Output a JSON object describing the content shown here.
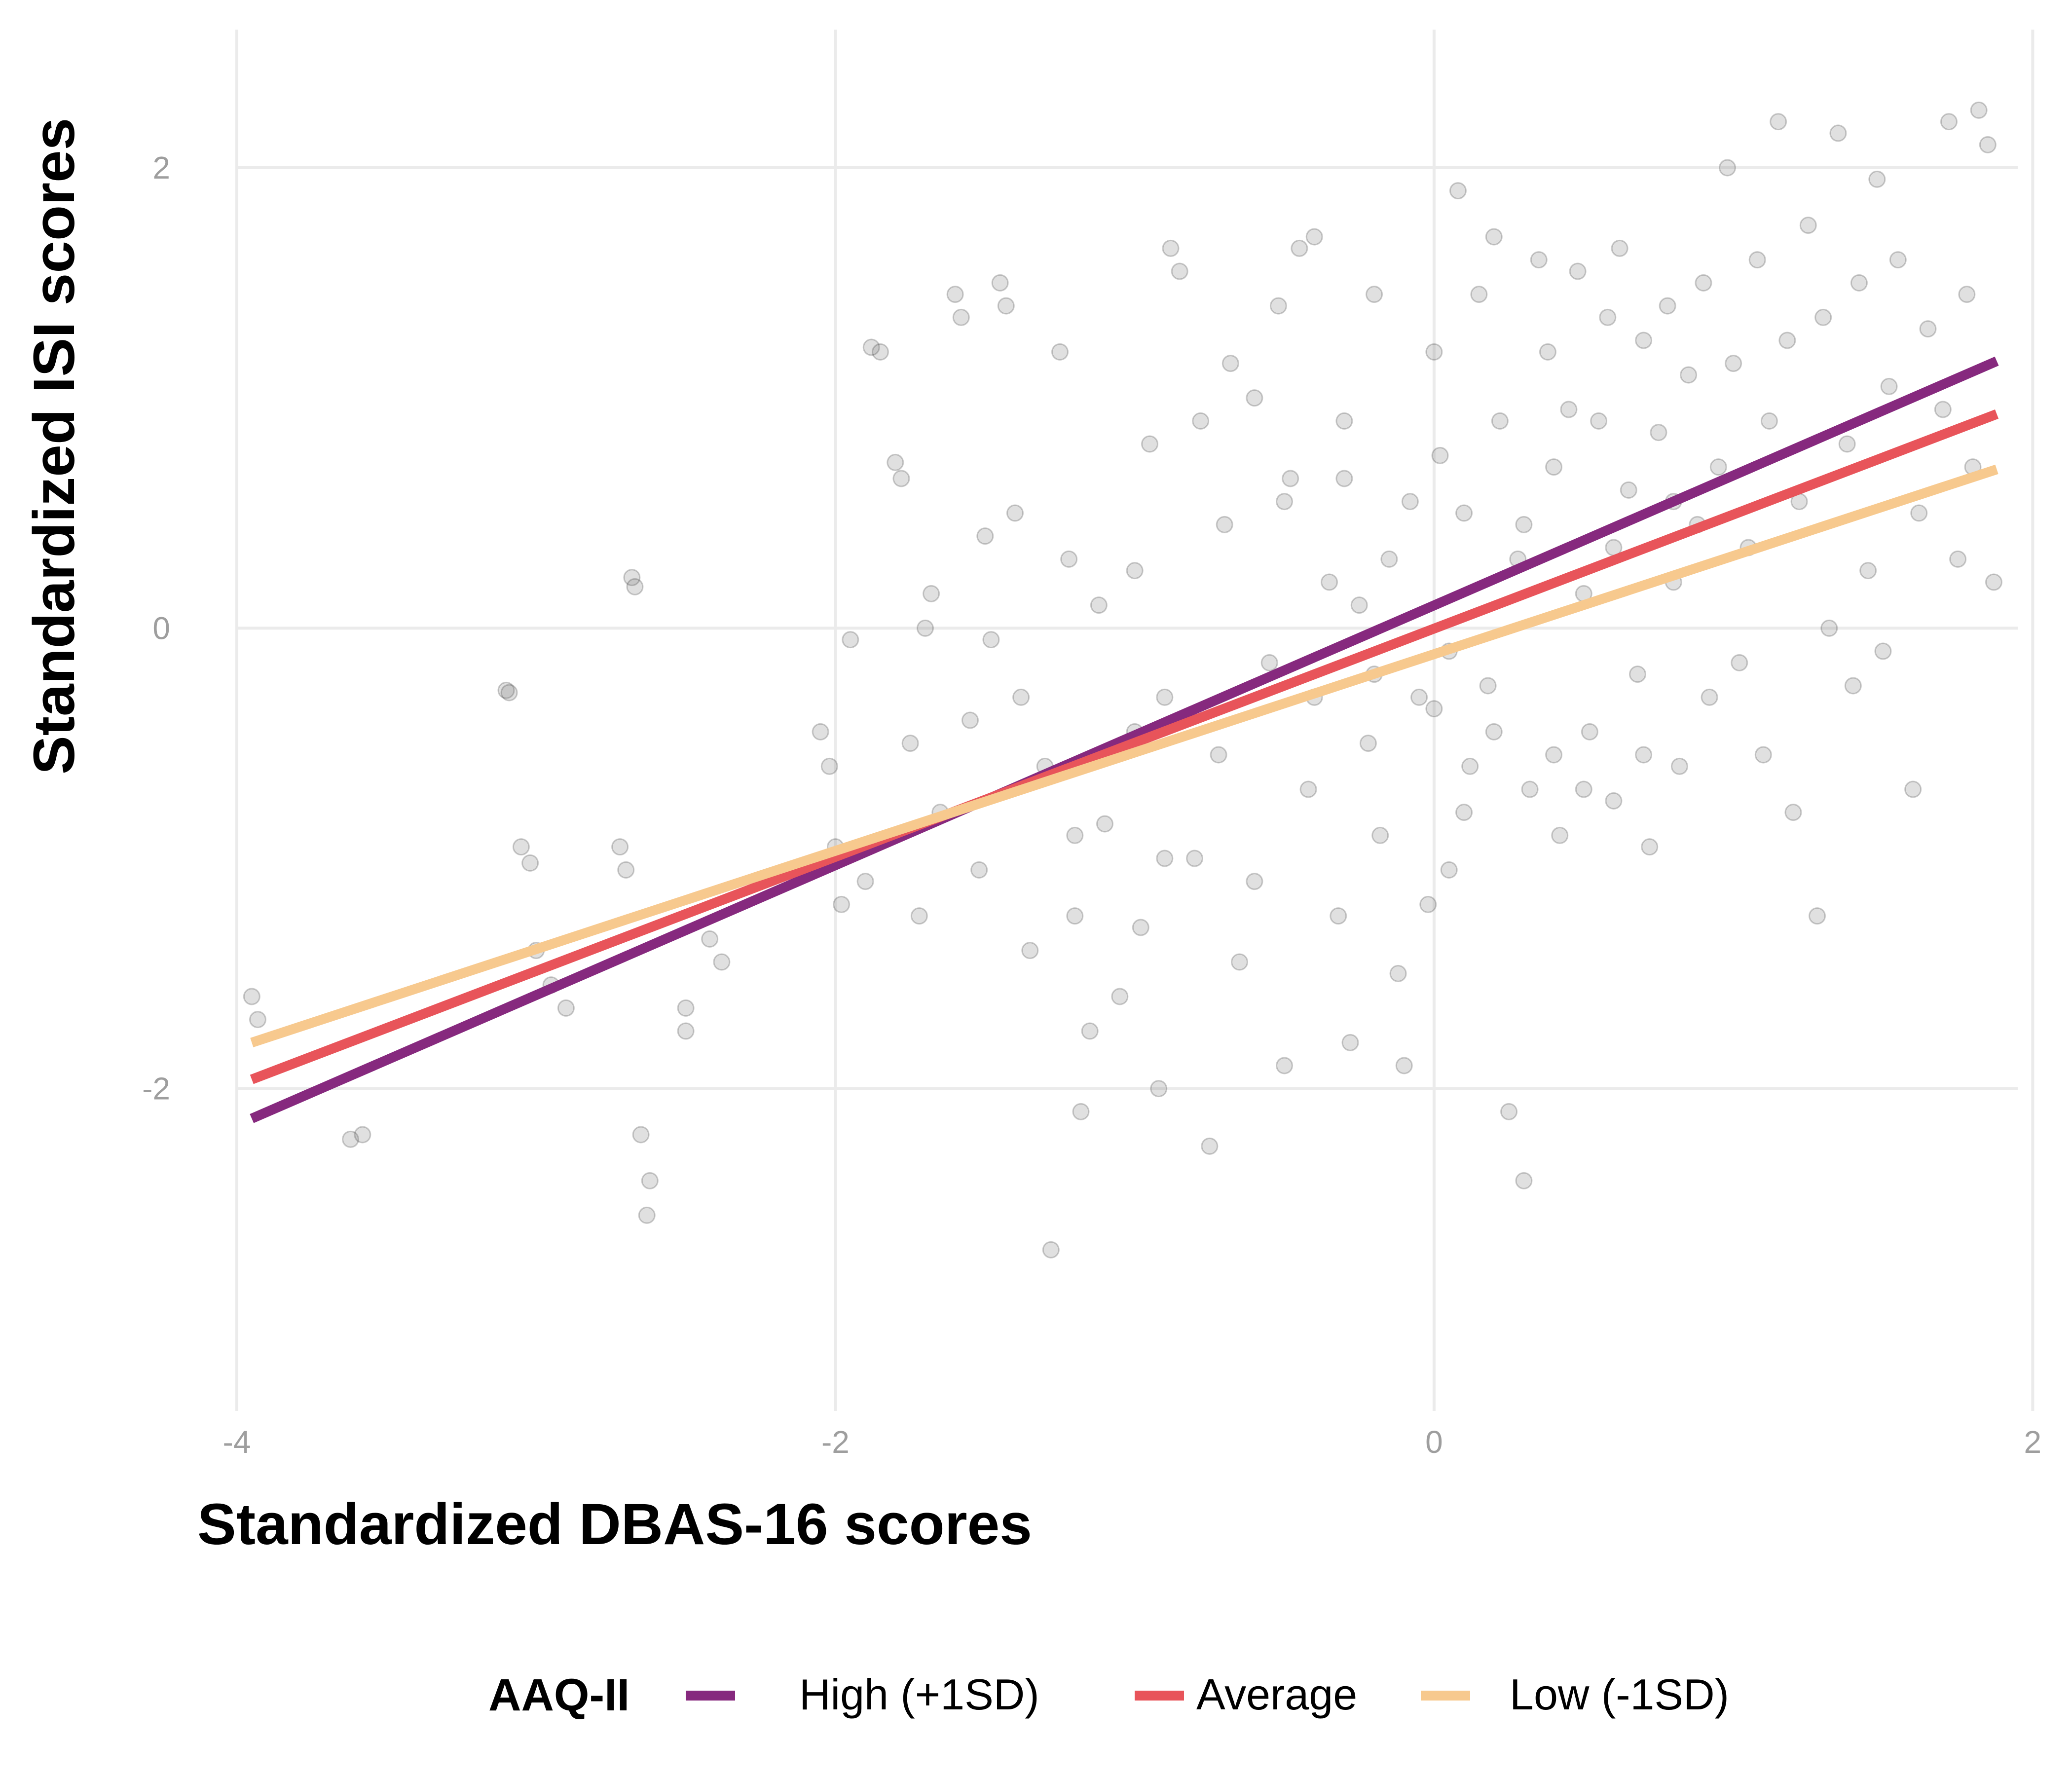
{
  "chart_data": {
    "type": "scatter",
    "title": "",
    "xlabel": "Standardized DBAS-16 scores",
    "ylabel": "Standardized ISI scores",
    "xlim": [
      -4.0,
      1.95
    ],
    "ylim": [
      -3.4,
      2.6
    ],
    "x_ticks": [
      -4,
      -2,
      0,
      2
    ],
    "y_ticks": [
      -2,
      0,
      2
    ],
    "x_tick_labels": [
      "-4",
      "-2",
      "0",
      "2"
    ],
    "y_tick_labels": [
      "-2",
      "0",
      "2"
    ],
    "grid": true,
    "legend": {
      "title": "AAQ-II",
      "position": "bottom",
      "entries": [
        "High (+1SD)",
        "Average",
        "Low (-1SD)"
      ]
    },
    "points": {
      "color": "#666666",
      "opacity": 0.2,
      "sample": [
        [
          -3.95,
          -1.6
        ],
        [
          -3.93,
          -1.7
        ],
        [
          -3.62,
          -2.22
        ],
        [
          -3.58,
          -2.2
        ],
        [
          -3.1,
          -0.27
        ],
        [
          -3.09,
          -0.28
        ],
        [
          -3.05,
          -0.95
        ],
        [
          -3.02,
          -1.02
        ],
        [
          -3.0,
          -1.4
        ],
        [
          -2.95,
          -1.55
        ],
        [
          -2.9,
          -1.65
        ],
        [
          -2.72,
          -0.95
        ],
        [
          -2.7,
          -1.05
        ],
        [
          -2.68,
          0.22
        ],
        [
          -2.67,
          0.18
        ],
        [
          -2.65,
          -2.2
        ],
        [
          -2.62,
          -2.4
        ],
        [
          -2.63,
          -2.55
        ],
        [
          -2.5,
          -1.65
        ],
        [
          -2.5,
          -1.75
        ],
        [
          -2.42,
          -1.35
        ],
        [
          -2.38,
          -1.45
        ],
        [
          -2.05,
          -0.45
        ],
        [
          -2.02,
          -0.6
        ],
        [
          -2.0,
          -0.95
        ],
        [
          -1.98,
          -1.2
        ],
        [
          -1.95,
          -0.05
        ],
        [
          -1.9,
          -1.1
        ],
        [
          -1.88,
          1.22
        ],
        [
          -1.85,
          1.2
        ],
        [
          -1.8,
          0.72
        ],
        [
          -1.78,
          0.65
        ],
        [
          -1.75,
          -0.5
        ],
        [
          -1.72,
          -1.25
        ],
        [
          -1.7,
          0.0
        ],
        [
          -1.68,
          0.15
        ],
        [
          -1.65,
          -0.8
        ],
        [
          -1.6,
          1.45
        ],
        [
          -1.58,
          1.35
        ],
        [
          -1.55,
          -0.4
        ],
        [
          -1.52,
          -1.05
        ],
        [
          -1.5,
          0.4
        ],
        [
          -1.48,
          -0.05
        ],
        [
          -1.45,
          1.5
        ],
        [
          -1.43,
          1.4
        ],
        [
          -1.4,
          0.5
        ],
        [
          -1.38,
          -0.3
        ],
        [
          -1.35,
          -1.4
        ],
        [
          -1.3,
          -0.6
        ],
        [
          -1.28,
          -2.7
        ],
        [
          -1.25,
          1.2
        ],
        [
          -1.22,
          0.3
        ],
        [
          -1.2,
          -1.25
        ],
        [
          -1.18,
          -2.1
        ],
        [
          -1.15,
          -1.75
        ],
        [
          -1.12,
          0.1
        ],
        [
          -1.1,
          -0.85
        ],
        [
          -1.05,
          -1.6
        ],
        [
          -1.0,
          0.25
        ],
        [
          -0.98,
          -1.3
        ],
        [
          -0.95,
          0.8
        ],
        [
          -0.92,
          -2.0
        ],
        [
          -0.9,
          -0.3
        ],
        [
          -0.88,
          1.65
        ],
        [
          -0.85,
          1.55
        ],
        [
          -0.8,
          -1.0
        ],
        [
          -0.78,
          0.9
        ],
        [
          -0.75,
          -2.25
        ],
        [
          -0.72,
          -0.55
        ],
        [
          -0.7,
          0.45
        ],
        [
          -0.68,
          1.15
        ],
        [
          -0.65,
          -1.45
        ],
        [
          -0.6,
          1.0
        ],
        [
          -0.55,
          -0.15
        ],
        [
          -0.52,
          1.4
        ],
        [
          -0.5,
          -1.9
        ],
        [
          -0.48,
          0.65
        ],
        [
          -0.45,
          1.65
        ],
        [
          -0.42,
          -0.7
        ],
        [
          -0.4,
          1.7
        ],
        [
          -0.35,
          0.2
        ],
        [
          -0.32,
          -1.25
        ],
        [
          -0.3,
          0.9
        ],
        [
          -0.28,
          -1.8
        ],
        [
          -0.25,
          0.1
        ],
        [
          -0.22,
          -0.5
        ],
        [
          -0.2,
          1.45
        ],
        [
          -0.18,
          -0.9
        ],
        [
          -0.15,
          0.3
        ],
        [
          -0.12,
          -1.5
        ],
        [
          -0.1,
          -1.9
        ],
        [
          -0.08,
          0.55
        ],
        [
          -0.05,
          -0.3
        ],
        [
          -0.02,
          -1.2
        ],
        [
          0.0,
          1.2
        ],
        [
          0.02,
          0.75
        ],
        [
          0.05,
          -0.1
        ],
        [
          0.05,
          -1.05
        ],
        [
          0.08,
          1.9
        ],
        [
          0.1,
          0.5
        ],
        [
          0.12,
          -0.6
        ],
        [
          0.15,
          1.45
        ],
        [
          0.18,
          -0.25
        ],
        [
          0.2,
          1.7
        ],
        [
          0.22,
          0.9
        ],
        [
          0.25,
          -2.1
        ],
        [
          0.28,
          0.3
        ],
        [
          0.3,
          -2.4
        ],
        [
          0.32,
          -0.7
        ],
        [
          0.35,
          1.6
        ],
        [
          0.38,
          1.2
        ],
        [
          0.4,
          0.7
        ],
        [
          0.42,
          -0.9
        ],
        [
          0.45,
          0.95
        ],
        [
          0.48,
          1.55
        ],
        [
          0.5,
          0.15
        ],
        [
          0.52,
          -0.45
        ],
        [
          0.55,
          0.9
        ],
        [
          0.58,
          1.35
        ],
        [
          0.6,
          -0.75
        ],
        [
          0.62,
          1.65
        ],
        [
          0.65,
          0.6
        ],
        [
          0.68,
          -0.2
        ],
        [
          0.7,
          1.25
        ],
        [
          0.72,
          -0.95
        ],
        [
          0.75,
          0.85
        ],
        [
          0.78,
          1.4
        ],
        [
          0.8,
          0.2
        ],
        [
          0.82,
          -0.6
        ],
        [
          0.85,
          1.1
        ],
        [
          0.88,
          0.45
        ],
        [
          0.9,
          1.5
        ],
        [
          0.92,
          -0.3
        ],
        [
          0.95,
          0.7
        ],
        [
          0.98,
          2.0
        ],
        [
          1.0,
          1.15
        ],
        [
          1.02,
          -0.15
        ],
        [
          1.05,
          0.35
        ],
        [
          1.08,
          1.6
        ],
        [
          1.1,
          -0.55
        ],
        [
          1.12,
          0.9
        ],
        [
          1.15,
          2.2
        ],
        [
          1.18,
          1.25
        ],
        [
          1.2,
          -0.8
        ],
        [
          1.22,
          0.55
        ],
        [
          1.25,
          1.75
        ],
        [
          1.28,
          -1.25
        ],
        [
          1.3,
          1.35
        ],
        [
          1.32,
          0.0
        ],
        [
          1.35,
          2.15
        ],
        [
          1.38,
          0.8
        ],
        [
          1.4,
          -0.25
        ],
        [
          1.42,
          1.5
        ],
        [
          1.45,
          0.25
        ],
        [
          1.48,
          1.95
        ],
        [
          1.5,
          -0.1
        ],
        [
          1.52,
          1.05
        ],
        [
          1.55,
          1.6
        ],
        [
          1.6,
          -0.7
        ],
        [
          1.62,
          0.5
        ],
        [
          1.65,
          1.3
        ],
        [
          1.7,
          0.95
        ],
        [
          1.72,
          2.2
        ],
        [
          1.75,
          0.3
        ],
        [
          1.78,
          1.45
        ],
        [
          1.8,
          0.7
        ],
        [
          1.82,
          2.25
        ],
        [
          1.85,
          2.1
        ],
        [
          1.87,
          0.2
        ],
        [
          -0.9,
          -1.0
        ],
        [
          -0.6,
          -1.1
        ],
        [
          -0.4,
          -0.3
        ],
        [
          -0.2,
          -0.2
        ],
        [
          0.0,
          -0.35
        ],
        [
          0.1,
          -0.8
        ],
        [
          0.2,
          -0.45
        ],
        [
          0.4,
          -0.55
        ],
        [
          0.5,
          -0.7
        ],
        [
          0.7,
          -0.55
        ],
        [
          -1.0,
          -0.45
        ],
        [
          -1.2,
          -0.9
        ],
        [
          -0.5,
          0.55
        ],
        [
          -0.3,
          0.65
        ],
        [
          0.3,
          0.45
        ],
        [
          0.6,
          0.35
        ],
        [
          0.8,
          0.55
        ]
      ]
    },
    "series": [
      {
        "name": "High (+1SD)",
        "color": "#86297e",
        "x": [
          -3.95,
          1.88
        ],
        "y": [
          -2.13,
          1.16
        ]
      },
      {
        "name": "Average",
        "color": "#e8545a",
        "x": [
          -3.95,
          1.88
        ],
        "y": [
          -1.96,
          0.93
        ]
      },
      {
        "name": "Low (-1SD)",
        "color": "#f7c98e",
        "x": [
          -3.95,
          1.88
        ],
        "y": [
          -1.8,
          0.69
        ]
      }
    ]
  }
}
